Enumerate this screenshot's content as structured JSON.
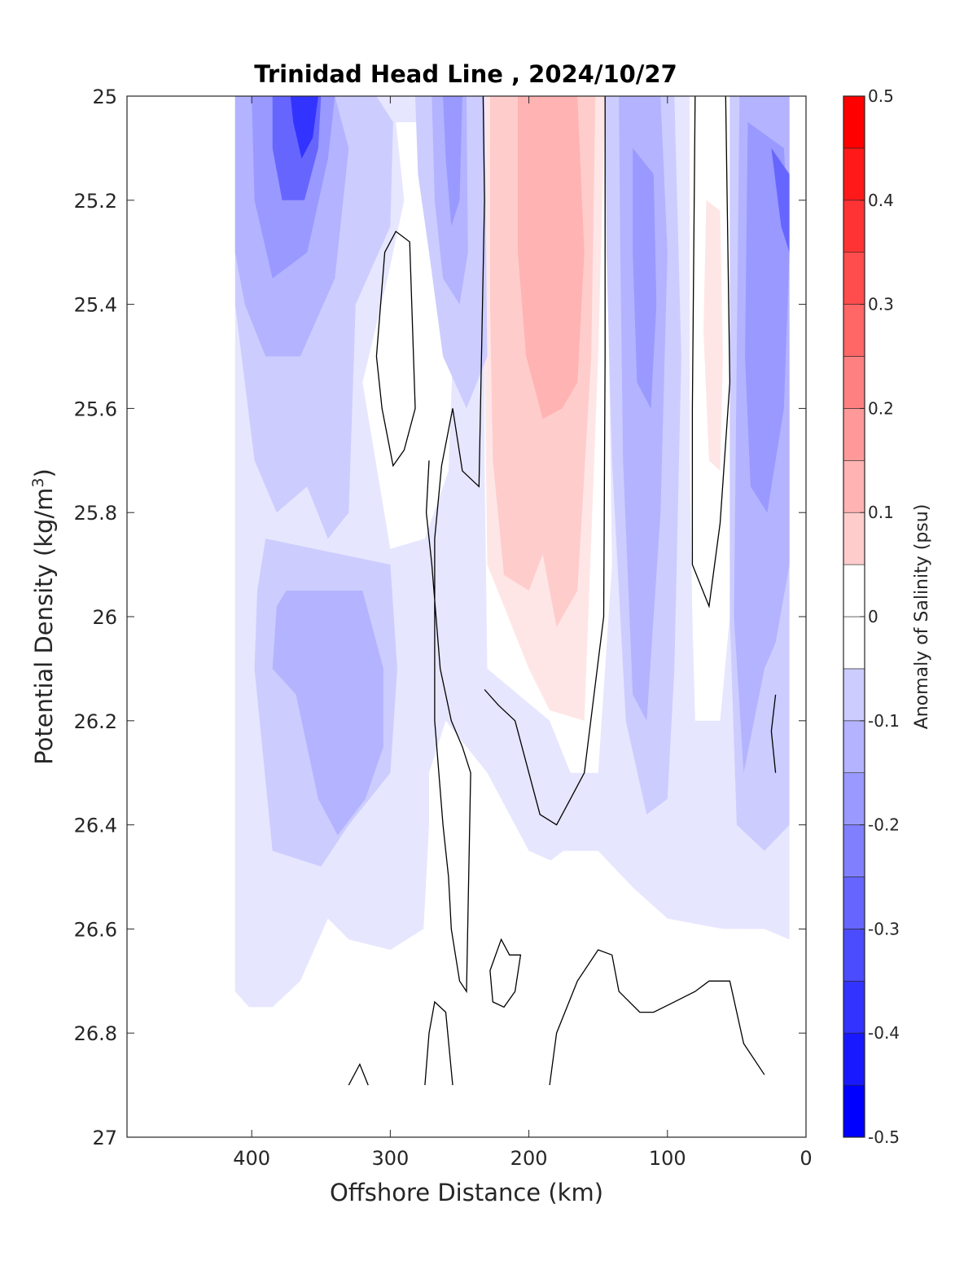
{
  "chart_data": {
    "type": "heatmap",
    "title": "Trinidad Head Line , 2024/10/27",
    "xlabel": "Offshore Distance (km)",
    "ylabel_main": "Potential Density (kg/m",
    "ylabel_sup": "3",
    "ylabel_close": ")",
    "colorbar_label": "Anomaly of Salinity (psu)",
    "xlim": [
      490,
      0
    ],
    "ylim": [
      25,
      27
    ],
    "x_reversed": true,
    "y_reversed": true,
    "xticks": [
      400,
      300,
      200,
      100,
      0
    ],
    "yticks": [
      25,
      25.2,
      25.4,
      25.6,
      25.8,
      26,
      26.2,
      26.4,
      26.6,
      26.8,
      27
    ],
    "ytick_labels": [
      "25",
      "25.2",
      "25.4",
      "25.6",
      "25.8",
      "26",
      "26.2",
      "26.4",
      "26.6",
      "26.8",
      "27"
    ],
    "colorbar_range": [
      -0.5,
      0.5
    ],
    "colorbar_ticks": [
      0.5,
      0.4,
      0.3,
      0.2,
      0.1,
      0,
      -0.1,
      -0.2,
      -0.3,
      -0.4,
      -0.5
    ],
    "colorbar_tick_labels": [
      "0.5",
      "0.4",
      "0.3",
      "0.2",
      "0.1",
      "0",
      "-0.1",
      "-0.2",
      "-0.3",
      "-0.4",
      "-0.5"
    ],
    "contour_step": 0.05,
    "zero_contour_drawn": true,
    "colormap": {
      "positive_max": "#ff0000",
      "negative_max": "#0000ff",
      "zero": "#ffffff"
    },
    "section_extent_km": [
      412,
      12
    ],
    "regions": [
      {
        "x_range": [
          412,
          330
        ],
        "y_range": [
          25,
          25.5
        ],
        "anomaly": -0.2
      },
      {
        "x_range": [
          380,
          340
        ],
        "y_range": [
          25,
          25.2
        ],
        "anomaly": -0.4
      },
      {
        "x_range": [
          330,
          290
        ],
        "y_range": [
          25,
          25.8
        ],
        "anomaly": -0.1
      },
      {
        "x_range": [
          310,
          280
        ],
        "y_range": [
          25.25,
          25.7
        ],
        "anomaly": 0
      },
      {
        "x_range": [
          270,
          240
        ],
        "y_range": [
          25,
          25.5
        ],
        "anomaly": -0.2
      },
      {
        "x_range": [
          230,
          150
        ],
        "y_range": [
          25,
          25.6
        ],
        "anomaly": 0.2
      },
      {
        "x_range": [
          230,
          150
        ],
        "y_range": [
          25.6,
          26.0
        ],
        "anomaly": 0.15
      },
      {
        "x_range": [
          225,
          165
        ],
        "y_range": [
          26.0,
          26.2
        ],
        "anomaly": 0.05
      },
      {
        "x_range": [
          140,
          90
        ],
        "y_range": [
          25,
          26.2
        ],
        "anomaly": -0.15
      },
      {
        "x_range": [
          80,
          55
        ],
        "y_range": [
          25,
          25.95
        ],
        "anomaly": 0
      },
      {
        "x_range": [
          75,
          60
        ],
        "y_range": [
          25.2,
          25.7
        ],
        "anomaly": 0.1
      },
      {
        "x_range": [
          55,
          12
        ],
        "y_range": [
          25,
          26.45
        ],
        "anomaly": -0.2
      },
      {
        "x_range": [
          400,
          300
        ],
        "y_range": [
          25.85,
          26.45
        ],
        "anomaly": -0.15
      },
      {
        "x_range": [
          412,
          280
        ],
        "y_range": [
          25.5,
          26.75
        ],
        "anomaly": -0.1
      },
      {
        "x_range": [
          200,
          30
        ],
        "y_range": [
          26.2,
          26.7
        ],
        "anomaly": -0.1
      },
      {
        "x_range": [
          290,
          190
        ],
        "y_range": [
          26.1,
          26.9
        ],
        "anomaly": 0
      }
    ]
  }
}
